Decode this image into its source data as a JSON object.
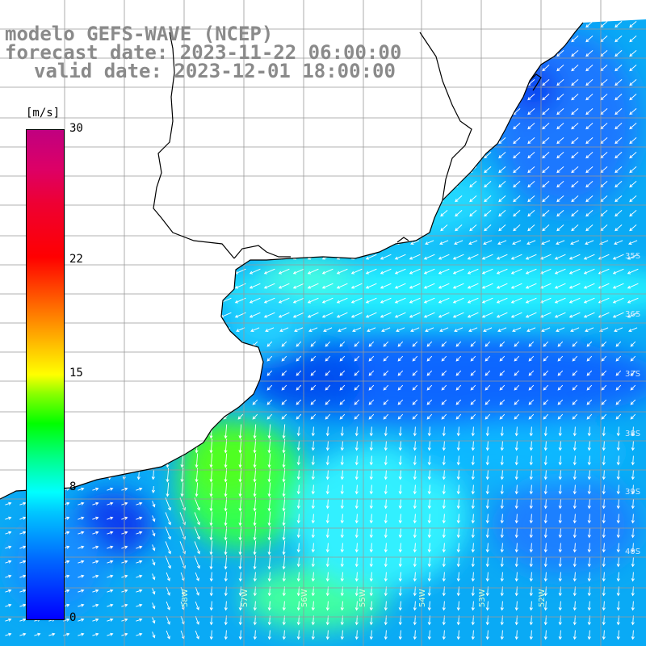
{
  "title_line1": "modelo GEFS-WAVE (NCEP)",
  "title_line2": "forecast date: 2023-11-22 06:00:00",
  "title_line3": "valid date: 2023-12-01 18:00:00",
  "colorbar": {
    "unit": "[m/s]",
    "min": 0,
    "max": 30,
    "ticks": [
      {
        "value": 30,
        "label": "30"
      },
      {
        "value": 22,
        "label": "22"
      },
      {
        "value": 15,
        "label": "15"
      },
      {
        "value": 8,
        "label": "8"
      },
      {
        "value": 0,
        "label": "0"
      }
    ]
  },
  "lat_labels": [
    "35S",
    "36S",
    "37S",
    "38S",
    "39S",
    "40S"
  ],
  "lon_labels": [
    "58W",
    "57W",
    "56W",
    "55W",
    "54W",
    "53W",
    "52W"
  ],
  "colors": {
    "land": "#ffffff",
    "title": "#8a8a8a",
    "grid": "#999999",
    "arrows": "#ffffff"
  }
}
